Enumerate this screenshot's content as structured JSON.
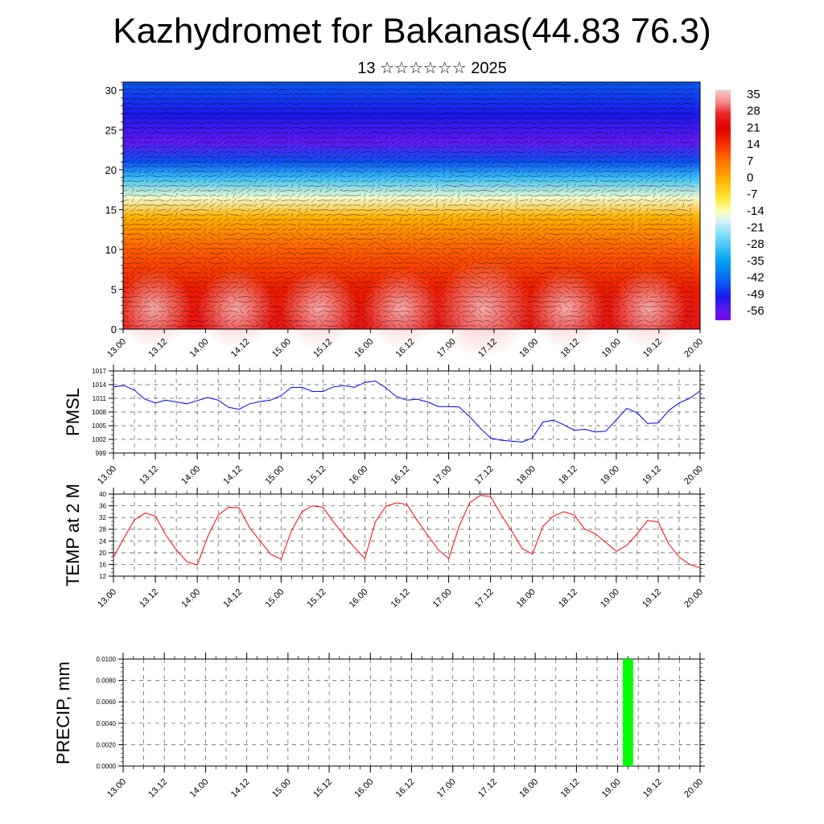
{
  "header": {
    "title": "Kazhydromet for Bakanas(44.83 76.3)",
    "subtitle": "13 ☆☆☆☆☆☆ 2025"
  },
  "time_ticks": [
    "13.00",
    "13.12",
    "14.00",
    "14.12",
    "15.00",
    "15.12",
    "16.00",
    "16.12",
    "17.00",
    "17.12",
    "18.00",
    "18.12",
    "19.00",
    "19.12",
    "20.00"
  ],
  "colors": {
    "pmsl_line": "#0000ff",
    "temp_line": "#ff0000",
    "precip_bar": "#00ff00"
  },
  "chart_data": [
    {
      "type": "heatmap",
      "title": "",
      "x_label": "",
      "y_label": "",
      "ylim": [
        0,
        31
      ],
      "y_ticks": [
        "0",
        "5",
        "10",
        "15",
        "20",
        "25",
        "30"
      ],
      "colorbar": {
        "labels": [
          "35",
          "28",
          "21",
          "14",
          "7",
          "0",
          "-7",
          "-14",
          "-21",
          "-28",
          "-35",
          "-42",
          "-49",
          "-56"
        ],
        "range": [
          -60,
          38
        ]
      },
      "temperature_profile": [
        {
          "height": 0,
          "value": 25
        },
        {
          "height": 5,
          "value": 18
        },
        {
          "height": 10,
          "value": 10
        },
        {
          "height": 14,
          "value": 0
        },
        {
          "height": 16.5,
          "value": -15
        },
        {
          "height": 19,
          "value": -30
        },
        {
          "height": 21,
          "value": -45
        },
        {
          "height": 23.5,
          "value": -56
        },
        {
          "height": 27,
          "value": -50
        },
        {
          "height": 31,
          "value": -44
        }
      ],
      "note_wind_vectors": true
    },
    {
      "type": "line",
      "ylabel": "PMSL",
      "ylim": [
        999,
        1017
      ],
      "y_ticks": [
        "999",
        "1002",
        "1005",
        "1008",
        "1011",
        "1014",
        "1017"
      ],
      "series": [
        {
          "x": [
            0,
            3,
            6,
            9,
            12,
            15,
            18,
            21,
            24,
            27,
            30,
            33,
            36,
            39,
            42,
            45,
            48,
            51,
            54,
            57,
            60,
            63,
            66,
            69,
            72,
            75,
            78,
            81,
            84,
            87,
            90,
            93,
            96,
            99,
            102,
            105,
            108,
            111,
            114,
            117,
            120,
            123,
            126,
            129,
            132,
            135,
            138,
            141,
            144,
            147,
            150,
            153,
            156,
            159,
            162,
            165,
            168
          ],
          "values": [
            1013.5,
            1013.8,
            1012.8,
            1010.8,
            1010.0,
            1010.6,
            1010.2,
            1009.8,
            1010.5,
            1011.2,
            1010.6,
            1009.0,
            1008.6,
            1009.8,
            1010.3,
            1010.6,
            1011.6,
            1013.4,
            1013.4,
            1012.5,
            1012.5,
            1013.5,
            1013.8,
            1013.4,
            1014.5,
            1014.8,
            1013.3,
            1011.4,
            1010.6,
            1010.8,
            1010.2,
            1009.2,
            1009.2,
            1009.1,
            1007.0,
            1004.5,
            1002.3,
            1001.8,
            1001.6,
            1001.4,
            1002.3,
            1005.8,
            1006.2,
            1005.2,
            1004.0,
            1004.2,
            1003.6,
            1003.8,
            1006.3,
            1008.8,
            1007.8,
            1005.5,
            1005.6,
            1008.3,
            1010.0,
            1011.0,
            1012.6
          ]
        }
      ]
    },
    {
      "type": "line",
      "ylabel": "TEMP at 2 M",
      "ylim": [
        12,
        40
      ],
      "y_ticks": [
        "12",
        "16",
        "20",
        "24",
        "28",
        "32",
        "36",
        "40"
      ],
      "series": [
        {
          "x": [
            0,
            3,
            6,
            9,
            12,
            15,
            18,
            21,
            24,
            27,
            30,
            33,
            36,
            39,
            42,
            45,
            48,
            51,
            54,
            57,
            60,
            63,
            66,
            69,
            72,
            75,
            78,
            81,
            84,
            87,
            90,
            93,
            96,
            99,
            102,
            105,
            108,
            111,
            114,
            117,
            120,
            123,
            126,
            129,
            132,
            135,
            138,
            141,
            144,
            147,
            150,
            153,
            156,
            159,
            162,
            165,
            168
          ],
          "values": [
            18.5,
            25.0,
            31.2,
            33.5,
            32.5,
            26.0,
            21.0,
            17.0,
            15.8,
            25.5,
            32.8,
            35.5,
            35.3,
            28.5,
            24.0,
            19.5,
            17.8,
            27.5,
            34.0,
            36.0,
            35.5,
            30.5,
            26.0,
            21.8,
            18.0,
            30.5,
            35.8,
            37.0,
            36.5,
            31.0,
            26.0,
            21.0,
            18.0,
            29.0,
            37.0,
            39.5,
            39.2,
            33.0,
            27.5,
            21.5,
            19.5,
            29.0,
            32.5,
            34.0,
            32.8,
            28.0,
            26.5,
            23.5,
            20.5,
            22.5,
            26.5,
            31.0,
            30.5,
            23.0,
            18.5,
            16.0,
            14.8
          ]
        }
      ]
    },
    {
      "type": "bar",
      "ylabel": "PRECIP, mm",
      "ylim": [
        0,
        0.01
      ],
      "y_ticks": [
        "0.0000",
        "0.0020",
        "0.0040",
        "0.0060",
        "0.0080",
        "0.0100"
      ],
      "bars": [
        {
          "x": 147,
          "value": 0.01
        }
      ]
    }
  ]
}
